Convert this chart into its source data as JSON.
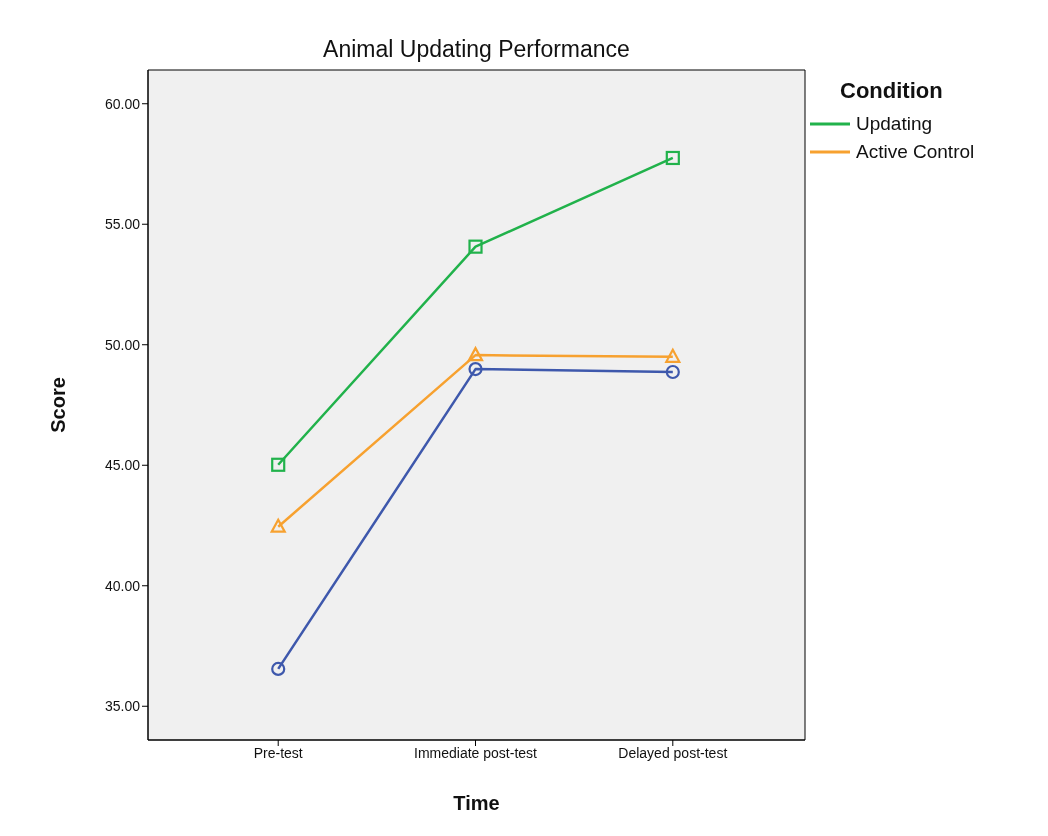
{
  "chart_data": {
    "type": "line",
    "title": "Animal Updating Performance",
    "xlabel": "Time",
    "ylabel": "Score",
    "legend_title": "Condition",
    "categories": [
      "Pre-test",
      "Immediate post-test",
      "Delayed post-test"
    ],
    "series": [
      {
        "color": "#3e58ac",
        "marker": "circle",
        "values": [
          36.55,
          48.99,
          48.87
        ]
      },
      {
        "name": "Updating",
        "color": "#21b24b",
        "marker": "square",
        "values": [
          45.02,
          54.07,
          57.75
        ]
      },
      {
        "name": "Active Control",
        "color": "#f7a12f",
        "marker": "triangle",
        "values": [
          42.45,
          49.57,
          49.5
        ]
      }
    ],
    "ylim": [
      33.6,
      61.4
    ],
    "yticks": [
      {
        "value": 35,
        "label": "35.00"
      },
      {
        "value": 40,
        "label": "40.00"
      },
      {
        "value": 45,
        "label": "45.00"
      },
      {
        "value": 50,
        "label": "50.00"
      },
      {
        "value": 55,
        "label": "55.00"
      },
      {
        "value": 60,
        "label": "60.00"
      }
    ],
    "grid": false,
    "legend": "right",
    "line_style": "solid"
  }
}
